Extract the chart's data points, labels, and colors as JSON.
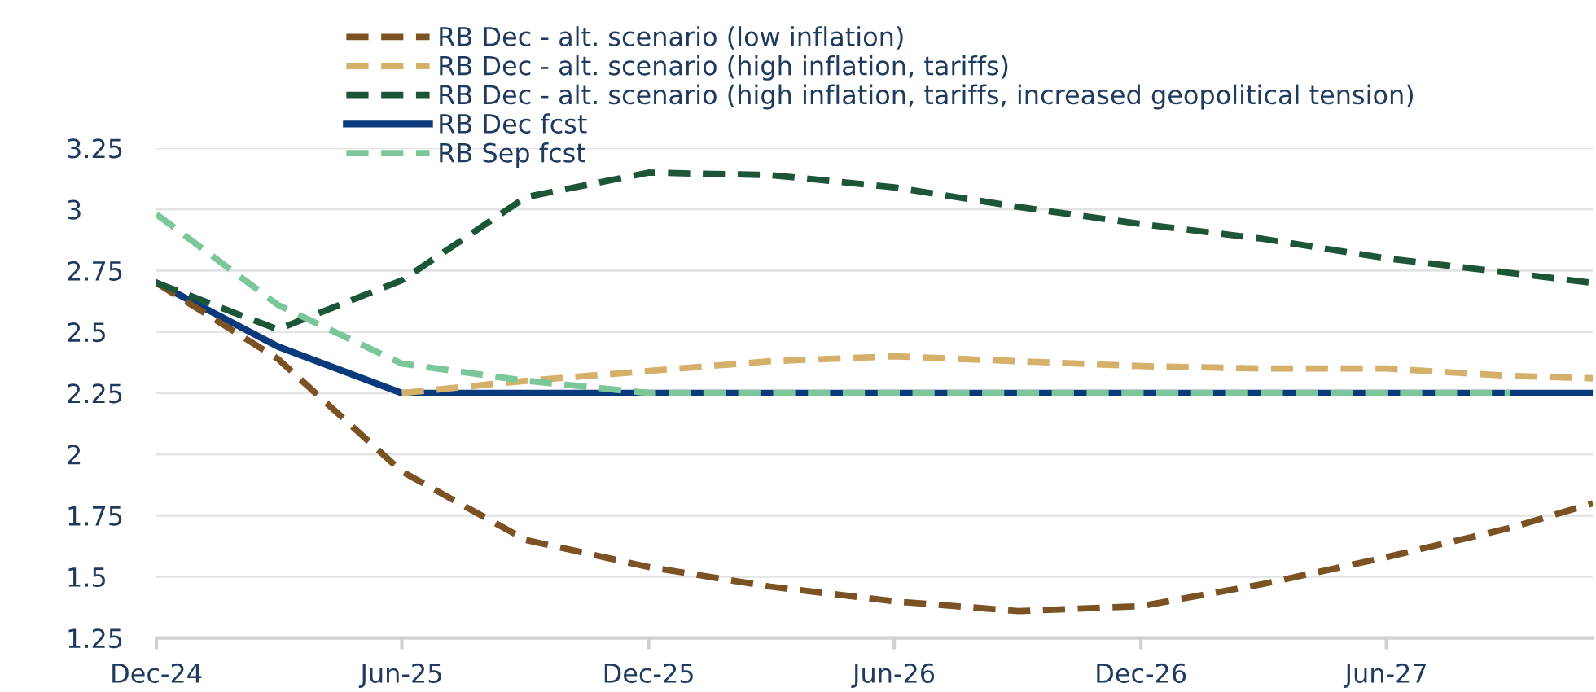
{
  "chart_data": {
    "type": "line",
    "x": [
      "2024-12",
      "2025-03",
      "2025-06",
      "2025-09",
      "2025-12",
      "2026-03",
      "2026-06",
      "2026-09",
      "2026-12",
      "2027-03",
      "2027-06",
      "2027-09",
      "2027-11"
    ],
    "series": [
      {
        "name": "RB Dec - alt. scenario (low inflation)",
        "color": "#7b5223",
        "line_style": "dashed",
        "values": [
          2.7,
          2.39,
          1.93,
          1.65,
          1.54,
          1.46,
          1.4,
          1.36,
          1.38,
          1.47,
          1.58,
          1.7,
          1.8
        ]
      },
      {
        "name": "RB Dec - alt. scenario (high inflation, tariffs)",
        "color": "#d4b06a",
        "line_style": "dashed",
        "values": [
          null,
          null,
          2.25,
          2.3,
          2.34,
          2.38,
          2.4,
          2.38,
          2.36,
          2.35,
          2.35,
          2.32,
          2.31
        ]
      },
      {
        "name": "RB Dec - alt. scenario (high inflation, tariffs, increased geopolitical tension)",
        "color": "#1d5538",
        "line_style": "dashed",
        "values": [
          2.7,
          2.51,
          2.71,
          3.05,
          3.15,
          3.14,
          3.09,
          3.01,
          2.94,
          2.88,
          2.8,
          2.74,
          2.7
        ]
      },
      {
        "name": "RB Dec fcst",
        "color": "#0a3a7c",
        "line_style": "solid",
        "values": [
          2.7,
          2.44,
          2.25,
          2.25,
          2.25,
          2.25,
          2.25,
          2.25,
          2.25,
          2.25,
          2.25,
          2.25,
          2.25
        ]
      },
      {
        "name": "RB Sep fcst",
        "color": "#7cc79a",
        "line_style": "dashed",
        "values": [
          2.98,
          2.61,
          2.37,
          2.3,
          2.25,
          2.25,
          2.25,
          2.25,
          2.25,
          2.25,
          2.25,
          2.25,
          null
        ]
      }
    ],
    "xlim": [
      "2024-12",
      "2027-11"
    ],
    "xticks": [
      {
        "value": "2024-12",
        "label": "Dec-24"
      },
      {
        "value": "2025-06",
        "label": "Jun-25"
      },
      {
        "value": "2025-12",
        "label": "Dec-25"
      },
      {
        "value": "2026-06",
        "label": "Jun-26"
      },
      {
        "value": "2026-12",
        "label": "Dec-26"
      },
      {
        "value": "2027-06",
        "label": "Jun-27"
      }
    ],
    "ylim": [
      1.25,
      3.25
    ],
    "yticks": [
      1.25,
      1.5,
      1.75,
      2,
      2.25,
      2.5,
      2.75,
      3,
      3.25
    ],
    "grid": "y",
    "legend": "top left",
    "marker": "none"
  }
}
